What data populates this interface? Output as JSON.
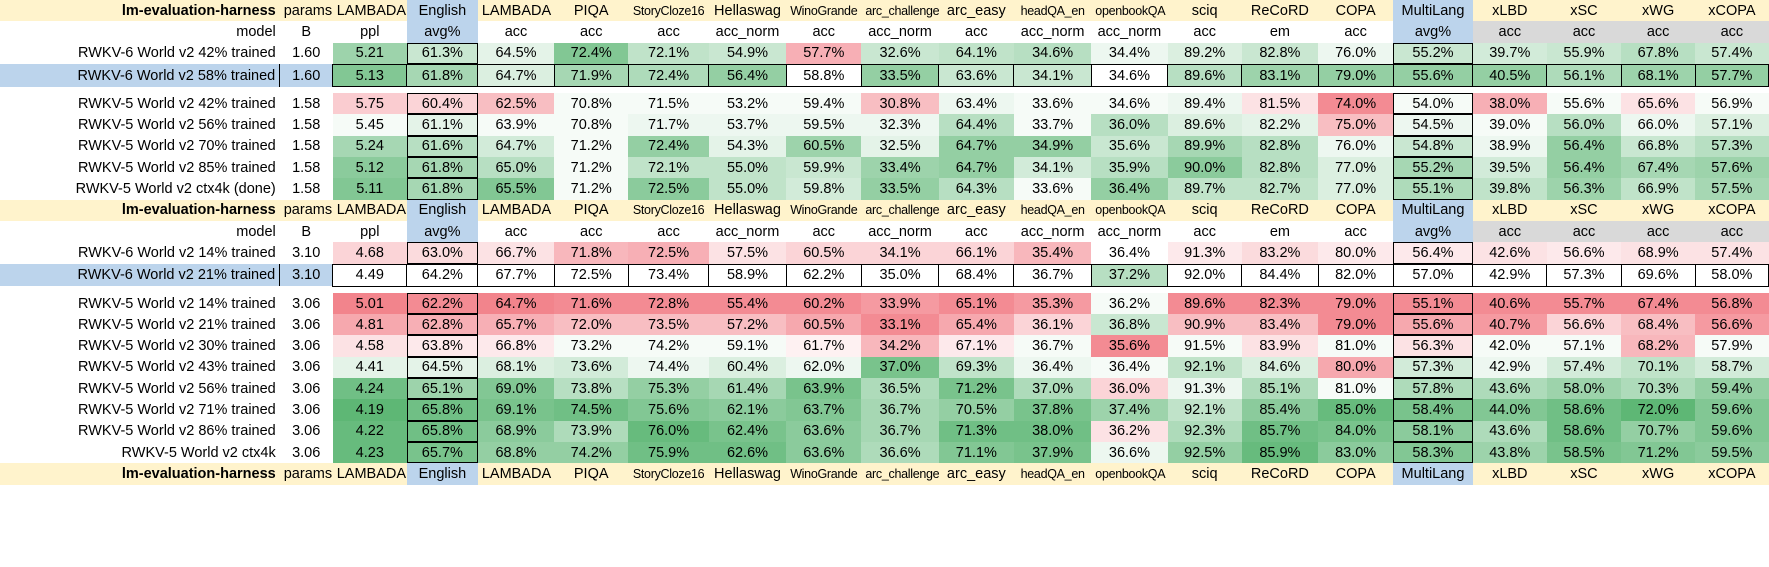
{
  "sheet": {
    "header_top": [
      "lm-evaluation-harness",
      "params",
      "LAMBADA",
      "English",
      "LAMBADA",
      "PIQA",
      "StoryCloze16",
      "Hellaswag",
      "WinoGrande",
      "arc_challenge",
      "arc_easy",
      "headQA_en",
      "openbookQA",
      "sciq",
      "ReCoRD",
      "COPA",
      "MultiLang",
      "xLBD",
      "xSC",
      "xWG",
      "xCOPA"
    ],
    "header_sub": [
      "model",
      "B",
      "ppl",
      "avg%",
      "acc",
      "acc",
      "acc",
      "acc_norm",
      "acc",
      "acc_norm",
      "acc",
      "acc_norm",
      "acc_norm",
      "acc",
      "em",
      "acc",
      "avg%",
      "acc",
      "acc",
      "acc",
      "acc"
    ],
    "colors": {
      "header_bg": "#fff3cc",
      "avg_bg": "#bcd4ec",
      "lang_acc_bg": "#d9d9d9",
      "good": "#4caf66",
      "bad": "#f06e78"
    },
    "groups": [
      {
        "selected_row": 1,
        "rows": [
          {
            "model": "RWKV-6 World v2 42% trained",
            "cells": [
              "1.60",
              "5.21",
              "61.3%",
              "64.5%",
              "72.4%",
              "72.1%",
              "54.9%",
              "57.7%",
              "32.6%",
              "64.1%",
              "34.6%",
              "34.4%",
              "89.2%",
              "82.8%",
              "76.0%",
              "55.2%",
              "39.7%",
              "55.9%",
              "67.8%",
              "57.4%"
            ],
            "shade": [
              null,
              0.55,
              0.3,
              0.15,
              0.7,
              0.35,
              0.3,
              -0.55,
              0.3,
              0.35,
              0.4,
              0.1,
              0.2,
              0.3,
              0.1,
              0.3,
              0.25,
              0.3,
              0.4,
              0.3
            ]
          },
          {
            "model": "RWKV-6 World v2 58% trained",
            "cells": [
              "1.60",
              "5.13",
              "61.8%",
              "64.7%",
              "71.9%",
              "72.4%",
              "56.4%",
              "58.8%",
              "33.5%",
              "63.6%",
              "34.1%",
              "34.6%",
              "89.6%",
              "83.1%",
              "79.0%",
              "55.6%",
              "40.5%",
              "56.1%",
              "68.1%",
              "57.7%"
            ],
            "shade": [
              null,
              0.7,
              0.5,
              0.2,
              0.5,
              0.45,
              0.6,
              0,
              0.6,
              0.3,
              0.3,
              0,
              0.4,
              0.55,
              0.6,
              0.6,
              0.6,
              0.45,
              0.55,
              0.6
            ]
          }
        ]
      },
      {
        "selected_row": -1,
        "rows": [
          {
            "model": "RWKV-5 World v2 42% trained",
            "cells": [
              "1.58",
              "5.75",
              "60.4%",
              "62.5%",
              "70.8%",
              "71.5%",
              "53.2%",
              "59.4%",
              "30.8%",
              "63.4%",
              "33.6%",
              "34.6%",
              "89.4%",
              "81.5%",
              "74.0%",
              "54.0%",
              "38.0%",
              "55.6%",
              "65.6%",
              "56.9%"
            ],
            "shade": [
              null,
              -0.35,
              -0.3,
              -0.45,
              0.05,
              0.05,
              0.05,
              0.05,
              -0.45,
              0.1,
              0.05,
              0.05,
              0.1,
              -0.2,
              -0.8,
              0.05,
              -0.55,
              0.05,
              -0.2,
              0.05
            ]
          },
          {
            "model": "RWKV-5 World v2 56% trained",
            "cells": [
              "1.58",
              "5.45",
              "61.1%",
              "63.9%",
              "70.8%",
              "71.7%",
              "53.7%",
              "59.5%",
              "32.3%",
              "64.4%",
              "33.7%",
              "36.0%",
              "89.6%",
              "82.2%",
              "75.0%",
              "54.5%",
              "39.0%",
              "56.0%",
              "66.0%",
              "57.1%"
            ],
            "shade": [
              null,
              0.05,
              0.15,
              0.05,
              0.05,
              0.1,
              0.1,
              0.1,
              0.1,
              0.4,
              0.05,
              0.4,
              0.2,
              0.15,
              -0.45,
              0.1,
              0.05,
              0.4,
              0.1,
              0.2
            ]
          },
          {
            "model": "RWKV-5 World v2 70% trained",
            "cells": [
              "1.58",
              "5.24",
              "61.6%",
              "64.7%",
              "71.2%",
              "72.4%",
              "54.3%",
              "60.5%",
              "32.5%",
              "64.7%",
              "34.9%",
              "35.6%",
              "89.9%",
              "82.8%",
              "76.0%",
              "54.8%",
              "38.9%",
              "56.4%",
              "66.8%",
              "57.3%"
            ],
            "shade": [
              null,
              0.5,
              0.4,
              0.25,
              0.05,
              0.6,
              0.15,
              0.55,
              0.15,
              0.6,
              0.6,
              0.3,
              0.5,
              0.4,
              0.1,
              0.3,
              0.1,
              0.6,
              0.3,
              0.4
            ]
          },
          {
            "model": "RWKV-5 World v2 85% trained",
            "cells": [
              "1.58",
              "5.12",
              "61.8%",
              "65.0%",
              "71.2%",
              "72.1%",
              "55.0%",
              "59.9%",
              "33.4%",
              "64.7%",
              "34.1%",
              "35.9%",
              "90.0%",
              "82.8%",
              "77.0%",
              "55.2%",
              "39.5%",
              "56.4%",
              "67.4%",
              "57.6%"
            ],
            "shade": [
              null,
              0.65,
              0.5,
              0.4,
              0.05,
              0.35,
              0.35,
              0.3,
              0.55,
              0.6,
              0.25,
              0.4,
              0.65,
              0.4,
              0.2,
              0.5,
              0.25,
              0.6,
              0.5,
              0.55
            ]
          },
          {
            "model": "RWKV-5 World v2 ctx4k (done)",
            "cells": [
              "1.58",
              "5.11",
              "61.8%",
              "65.5%",
              "71.2%",
              "72.5%",
              "55.0%",
              "59.8%",
              "33.5%",
              "64.3%",
              "33.6%",
              "36.4%",
              "89.7%",
              "82.7%",
              "77.0%",
              "55.1%",
              "39.8%",
              "56.3%",
              "66.9%",
              "57.5%"
            ],
            "shade": [
              null,
              0.7,
              0.5,
              0.7,
              0.05,
              0.65,
              0.35,
              0.25,
              0.6,
              0.4,
              0.05,
              0.6,
              0.35,
              0.35,
              0.2,
              0.45,
              0.35,
              0.55,
              0.35,
              0.5
            ]
          }
        ]
      }
    ],
    "groups_b": [
      {
        "selected_row": 1,
        "rows": [
          {
            "model": "RWKV-6 World v2 14% trained",
            "cells": [
              "3.10",
              "4.68",
              "63.0%",
              "66.7%",
              "71.8%",
              "72.5%",
              "57.5%",
              "60.5%",
              "34.1%",
              "66.1%",
              "35.4%",
              "36.4%",
              "91.3%",
              "83.2%",
              "80.0%",
              "56.4%",
              "42.6%",
              "56.6%",
              "68.9%",
              "57.4%"
            ],
            "shade": [
              null,
              -0.3,
              -0.25,
              -0.2,
              -0.5,
              -0.55,
              -0.2,
              -0.3,
              -0.3,
              -0.3,
              -0.5,
              0,
              -0.15,
              -0.25,
              -0.15,
              -0.15,
              -0.2,
              -0.15,
              -0.2,
              -0.2
            ]
          },
          {
            "model": "RWKV-6 World v2 21% trained",
            "cells": [
              "3.10",
              "4.49",
              "64.2%",
              "67.7%",
              "72.5%",
              "73.4%",
              "58.9%",
              "62.2%",
              "35.0%",
              "68.4%",
              "36.7%",
              "37.2%",
              "92.0%",
              "84.4%",
              "82.0%",
              "57.0%",
              "42.9%",
              "57.3%",
              "69.6%",
              "58.0%"
            ],
            "shade": [
              null,
              0,
              0,
              0,
              0,
              0,
              0,
              0,
              0,
              0,
              0,
              0.4,
              0,
              0,
              0,
              0,
              0,
              0,
              0,
              0
            ]
          }
        ]
      },
      {
        "selected_row": -1,
        "rows": [
          {
            "model": "RWKV-5 World v2 14% trained",
            "cells": [
              "3.06",
              "5.01",
              "62.2%",
              "64.7%",
              "71.6%",
              "72.8%",
              "55.4%",
              "60.2%",
              "33.9%",
              "65.1%",
              "35.3%",
              "36.2%",
              "89.6%",
              "82.3%",
              "79.0%",
              "55.1%",
              "40.6%",
              "55.7%",
              "67.4%",
              "56.8%"
            ],
            "shade": [
              null,
              -0.85,
              -0.8,
              -0.85,
              -0.8,
              -0.8,
              -0.8,
              -0.8,
              -0.7,
              -0.8,
              -0.7,
              0.05,
              -0.8,
              -0.8,
              -0.8,
              -0.8,
              -0.8,
              -0.8,
              -0.8,
              -0.8
            ]
          },
          {
            "model": "RWKV-5 World v2 21% trained",
            "cells": [
              "3.06",
              "4.81",
              "62.8%",
              "65.7%",
              "72.0%",
              "73.5%",
              "57.2%",
              "60.5%",
              "33.1%",
              "65.4%",
              "36.1%",
              "36.8%",
              "90.9%",
              "83.4%",
              "79.0%",
              "55.6%",
              "40.7%",
              "56.6%",
              "68.4%",
              "56.6%"
            ],
            "shade": [
              null,
              -0.6,
              -0.55,
              -0.55,
              -0.45,
              -0.45,
              -0.45,
              -0.6,
              -0.8,
              -0.6,
              -0.3,
              0.3,
              -0.45,
              -0.45,
              -0.8,
              -0.6,
              -0.7,
              -0.3,
              -0.45,
              -0.7
            ]
          },
          {
            "model": "RWKV-5 World v2 30% trained",
            "cells": [
              "3.06",
              "4.58",
              "63.8%",
              "66.8%",
              "73.2%",
              "74.2%",
              "59.1%",
              "61.7%",
              "34.2%",
              "67.1%",
              "36.7%",
              "35.6%",
              "91.5%",
              "83.9%",
              "81.0%",
              "56.3%",
              "42.0%",
              "57.1%",
              "68.2%",
              "57.9%"
            ],
            "shade": [
              null,
              -0.2,
              -0.15,
              -0.15,
              0.05,
              0.05,
              0.05,
              -0.1,
              -0.5,
              -0.15,
              0.05,
              -0.8,
              0.05,
              -0.2,
              0.05,
              -0.2,
              0.05,
              0.05,
              -0.5,
              0.05
            ]
          },
          {
            "model": "RWKV-5 World v2 43% trained",
            "cells": [
              "3.06",
              "4.41",
              "64.5%",
              "68.1%",
              "73.6%",
              "74.4%",
              "60.4%",
              "62.0%",
              "37.0%",
              "69.3%",
              "36.4%",
              "36.4%",
              "92.1%",
              "84.6%",
              "80.0%",
              "57.3%",
              "42.9%",
              "57.4%",
              "70.1%",
              "58.7%"
            ],
            "shade": [
              null,
              0.15,
              0.15,
              0.2,
              0.25,
              0.1,
              0.2,
              0.1,
              0.75,
              0.35,
              0.1,
              0.05,
              0.35,
              0.2,
              -0.6,
              0.25,
              0.1,
              0.25,
              0.35,
              0.25
            ]
          },
          {
            "model": "RWKV-5 World v2 56% trained",
            "cells": [
              "3.06",
              "4.24",
              "65.1%",
              "69.0%",
              "73.8%",
              "75.3%",
              "61.4%",
              "63.9%",
              "36.5%",
              "71.2%",
              "37.0%",
              "36.0%",
              "91.3%",
              "85.1%",
              "81.0%",
              "57.8%",
              "43.6%",
              "58.0%",
              "70.3%",
              "59.4%"
            ],
            "shade": [
              null,
              0.8,
              0.55,
              0.7,
              0.4,
              0.6,
              0.5,
              0.75,
              0.45,
              0.75,
              0.45,
              -0.3,
              0.1,
              0.45,
              0.05,
              0.45,
              0.45,
              0.55,
              0.45,
              0.6
            ]
          },
          {
            "model": "RWKV-5 World v2 71% trained",
            "cells": [
              "3.06",
              "4.19",
              "65.8%",
              "69.1%",
              "74.5%",
              "75.6%",
              "62.1%",
              "63.7%",
              "36.7%",
              "70.5%",
              "37.8%",
              "37.4%",
              "92.1%",
              "85.4%",
              "85.0%",
              "58.4%",
              "44.0%",
              "58.6%",
              "72.0%",
              "59.6%"
            ],
            "shade": [
              null,
              0.9,
              0.8,
              0.75,
              0.8,
              0.7,
              0.65,
              0.7,
              0.5,
              0.6,
              0.75,
              0.55,
              0.35,
              0.65,
              0.85,
              0.75,
              0.7,
              0.8,
              0.9,
              0.7
            ]
          },
          {
            "model": "RWKV-5 World v2 86% trained",
            "cells": [
              "3.06",
              "4.22",
              "65.8%",
              "68.9%",
              "73.9%",
              "76.0%",
              "62.4%",
              "63.6%",
              "36.7%",
              "71.3%",
              "38.0%",
              "36.2%",
              "92.3%",
              "85.7%",
              "84.0%",
              "58.1%",
              "43.6%",
              "58.6%",
              "70.7%",
              "59.6%"
            ],
            "shade": [
              null,
              0.85,
              0.8,
              0.65,
              0.45,
              0.85,
              0.75,
              0.65,
              0.5,
              0.8,
              0.8,
              -0.2,
              0.45,
              0.8,
              0.75,
              0.65,
              0.45,
              0.8,
              0.6,
              0.7
            ]
          },
          {
            "model": "RWKV-5 World v2 ctx4k",
            "cells": [
              "3.06",
              "4.23",
              "65.7%",
              "68.8%",
              "74.2%",
              "75.9%",
              "62.6%",
              "63.6%",
              "36.6%",
              "71.1%",
              "37.9%",
              "36.6%",
              "92.5%",
              "85.9%",
              "83.0%",
              "58.3%",
              "43.8%",
              "58.5%",
              "71.2%",
              "59.5%"
            ],
            "shade": [
              null,
              0.85,
              0.75,
              0.6,
              0.6,
              0.8,
              0.8,
              0.65,
              0.45,
              0.7,
              0.75,
              0.1,
              0.6,
              0.85,
              0.65,
              0.7,
              0.55,
              0.75,
              0.7,
              0.65
            ]
          }
        ]
      }
    ]
  }
}
